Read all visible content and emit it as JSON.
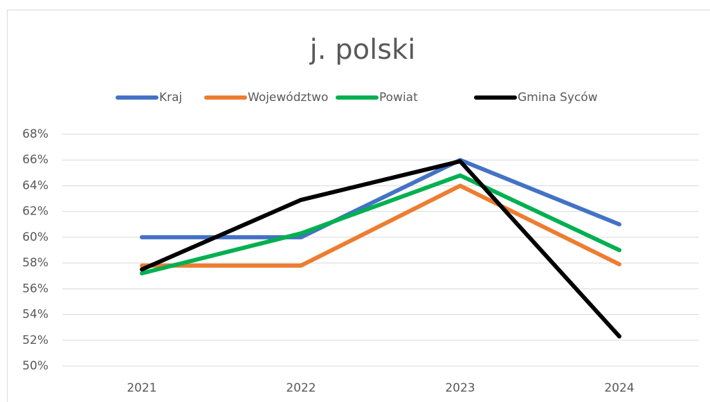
{
  "chart_data": {
    "type": "line",
    "title": "j. polski",
    "categories": [
      "2021",
      "2022",
      "2023",
      "2024"
    ],
    "series": [
      {
        "name": "Kraj",
        "color": "#4472c4",
        "values": [
          60,
          60,
          66,
          61
        ]
      },
      {
        "name": "Województwo",
        "color": "#ed7d31",
        "values": [
          57.8,
          57.8,
          64,
          57.9
        ]
      },
      {
        "name": "Powiat",
        "color": "#00b050",
        "values": [
          57.2,
          60.3,
          64.8,
          59
        ]
      },
      {
        "name": "Gmina Syców",
        "color": "#000000",
        "values": [
          57.5,
          62.9,
          65.9,
          52.3
        ]
      }
    ],
    "ylim": [
      50,
      68
    ],
    "yticks": [
      {
        "value": 50,
        "label": "50%"
      },
      {
        "value": 52,
        "label": "52%"
      },
      {
        "value": 54,
        "label": "54%"
      },
      {
        "value": 56,
        "label": "56%"
      },
      {
        "value": 58,
        "label": "58%"
      },
      {
        "value": 60,
        "label": "60%"
      },
      {
        "value": 62,
        "label": "62%"
      },
      {
        "value": 64,
        "label": "64%"
      },
      {
        "value": 66,
        "label": "66%"
      },
      {
        "value": 68,
        "label": "68%"
      }
    ],
    "grid": true,
    "legend": "top"
  }
}
